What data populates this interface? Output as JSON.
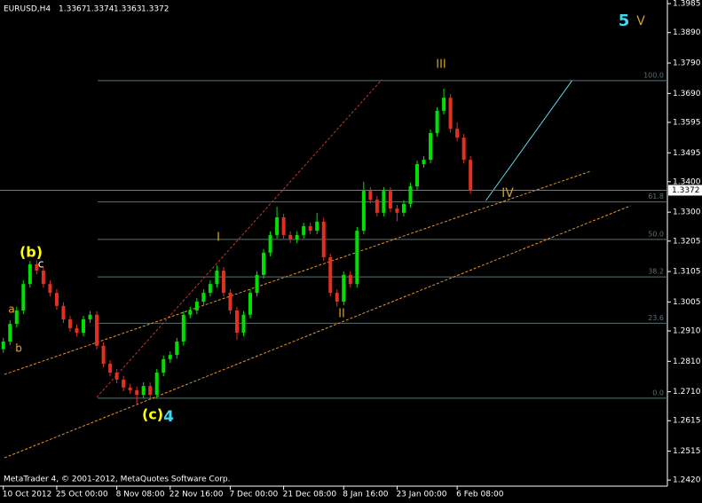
{
  "chart_data": {
    "type": "candlestick",
    "symbol": "EURUSD,H4",
    "quote": [
      1.3367,
      1.3374,
      1.3363,
      1.3372
    ],
    "footer": "MetaTrader 4, © 2001-2012, MetaQuotes Software Corp.",
    "bull_color": "#00e000",
    "bear_color": "#e03020",
    "open": [
      1.285,
      1.2875,
      1.2933,
      1.2977,
      1.3064,
      1.3129,
      1.3108,
      1.3064,
      1.3035,
      1.2992,
      1.2948,
      1.2919,
      1.2904,
      1.2948,
      1.2963,
      1.2861,
      1.2802,
      1.2773,
      1.275,
      1.2724,
      1.2715,
      1.27,
      1.2729,
      1.27,
      1.2773,
      1.2817,
      1.2831,
      1.2875,
      1.2963,
      1.2977,
      1.3006,
      1.3035,
      1.3064,
      1.3108,
      1.3035,
      1.2977,
      1.2904,
      1.2963,
      1.3035,
      1.3094,
      1.3167,
      1.3225,
      1.3283,
      1.3225,
      1.321,
      1.3225,
      1.3254,
      1.3239,
      1.3269,
      1.3152,
      1.3035,
      1.3006,
      1.3094,
      1.3064,
      1.3239,
      1.337,
      1.3341,
      1.3298,
      1.337,
      1.3312,
      1.3298,
      1.3327,
      1.3385,
      1.3458,
      1.3472,
      1.356,
      1.3633,
      1.3676,
      1.3574,
      1.3545,
      1.3472
    ],
    "high": [
      1.2887,
      1.2945,
      1.2989,
      1.3076,
      1.314,
      1.3141,
      1.312,
      1.3076,
      1.3047,
      1.3004,
      1.296,
      1.2931,
      1.296,
      1.2975,
      1.2975,
      1.2873,
      1.2814,
      1.2785,
      1.2762,
      1.2736,
      1.2727,
      1.2741,
      1.2741,
      1.2785,
      1.2829,
      1.2843,
      1.2887,
      1.2975,
      1.2989,
      1.3018,
      1.3047,
      1.3076,
      1.3125,
      1.312,
      1.3047,
      1.2989,
      1.2975,
      1.3047,
      1.3106,
      1.3179,
      1.3237,
      1.3318,
      1.3295,
      1.3237,
      1.3237,
      1.3266,
      1.3266,
      1.3298,
      1.3281,
      1.3164,
      1.3047,
      1.3106,
      1.3106,
      1.3251,
      1.34,
      1.3382,
      1.3353,
      1.3382,
      1.3382,
      1.3324,
      1.3339,
      1.3397,
      1.347,
      1.3484,
      1.3572,
      1.3645,
      1.3706,
      1.3688,
      1.3595,
      1.3557,
      1.3484
    ],
    "low": [
      1.2838,
      1.2863,
      1.2921,
      1.2965,
      1.3052,
      1.3096,
      1.3052,
      1.3023,
      1.298,
      1.2936,
      1.2907,
      1.2892,
      1.2892,
      1.2936,
      1.2849,
      1.279,
      1.2761,
      1.2738,
      1.2712,
      1.2703,
      1.267,
      1.2688,
      1.2688,
      1.2688,
      1.2761,
      1.2805,
      1.2819,
      1.2863,
      1.2951,
      1.2965,
      1.2994,
      1.3023,
      1.3052,
      1.3023,
      1.2965,
      1.288,
      1.2892,
      1.2951,
      1.3023,
      1.3082,
      1.3155,
      1.3213,
      1.3213,
      1.3198,
      1.3198,
      1.3213,
      1.3227,
      1.3227,
      1.314,
      1.3023,
      1.299,
      1.2994,
      1.3052,
      1.3052,
      1.3227,
      1.3329,
      1.3286,
      1.3286,
      1.33,
      1.327,
      1.3286,
      1.3315,
      1.3373,
      1.3446,
      1.346,
      1.3548,
      1.3621,
      1.3562,
      1.3533,
      1.346,
      1.336
    ],
    "close": [
      1.2875,
      1.2933,
      1.2977,
      1.3064,
      1.3129,
      1.3108,
      1.3064,
      1.3035,
      1.2992,
      1.2948,
      1.2919,
      1.2904,
      1.2948,
      1.2963,
      1.2861,
      1.2802,
      1.2773,
      1.275,
      1.2724,
      1.2715,
      1.27,
      1.2729,
      1.27,
      1.2773,
      1.2817,
      1.2831,
      1.2875,
      1.2963,
      1.2977,
      1.3006,
      1.3035,
      1.3064,
      1.3108,
      1.3035,
      1.2977,
      1.2904,
      1.2963,
      1.3035,
      1.3094,
      1.3167,
      1.3225,
      1.3283,
      1.3225,
      1.321,
      1.3225,
      1.3254,
      1.3239,
      1.3269,
      1.3152,
      1.3035,
      1.3006,
      1.3094,
      1.3064,
      1.3239,
      1.337,
      1.3341,
      1.3298,
      1.337,
      1.3312,
      1.3298,
      1.3327,
      1.3385,
      1.3458,
      1.3472,
      1.356,
      1.3633,
      1.3676,
      1.3574,
      1.3545,
      1.3472,
      1.3372
    ],
    "xlim": [
      -0.5,
      99.5
    ],
    "ylim": [
      1.24,
      1.3997
    ],
    "xticks": [
      {
        "value": 0,
        "label": "10 Oct 2012"
      },
      {
        "value": 8,
        "label": "25 Oct 00:00"
      },
      {
        "value": 17,
        "label": "8 Nov 08:00"
      },
      {
        "value": 25,
        "label": "22 Nov 16:00"
      },
      {
        "value": 34,
        "label": "7 Dec 00:00"
      },
      {
        "value": 42,
        "label": "21 Dec 08:00"
      },
      {
        "value": 51,
        "label": "8 Jan 16:00"
      },
      {
        "value": 59,
        "label": "23 Jan 00:00"
      },
      {
        "value": 68,
        "label": "6 Feb 08:00"
      }
    ],
    "yticks": [
      {
        "value": 1.242,
        "label": "1.2420"
      },
      1.2515,
      1.2615,
      {
        "value": 1.271,
        "label": "1.2710"
      },
      {
        "value": 1.281,
        "label": "1.2810"
      },
      {
        "value": 1.291,
        "label": "1.2910"
      },
      1.3005,
      1.3105,
      1.3205,
      {
        "value": 1.33,
        "label": "1.3300"
      },
      {
        "value": 1.34,
        "label": "1.3400"
      },
      1.3495,
      1.3595,
      {
        "value": 1.369,
        "label": "1.3690"
      },
      {
        "value": 1.379,
        "label": "1.3790"
      },
      {
        "value": 1.389,
        "label": "1.3890"
      },
      1.3985
    ],
    "fibo": {
      "low": 1.2689,
      "high": 1.3732,
      "color": "#5a7272",
      "levels": [
        {
          "value": 0,
          "label": "0.0"
        },
        23.6,
        38.2,
        {
          "value": 50,
          "label": "50.0"
        },
        61.8,
        {
          "value": 100,
          "label": "100.0"
        }
      ]
    },
    "trendlines": [
      {
        "color": "#c0392b",
        "dash": true,
        "points": [
          [
            14,
            1.2692
          ],
          [
            56.7,
            1.3735
          ]
        ]
      },
      {
        "color": "#e8952e",
        "dash": true,
        "points": [
          [
            0.16,
            1.2767
          ],
          [
            88.05,
            1.3435
          ]
        ]
      },
      {
        "color": "#e8952e",
        "dash": true,
        "points": [
          [
            0.16,
            1.2493
          ],
          [
            93.97,
            1.3321
          ]
        ]
      },
      {
        "color": "#5fd7e8",
        "dash": false,
        "points": [
          [
            72.3,
            1.3338
          ],
          [
            85.2,
            1.3732
          ]
        ]
      }
    ],
    "annotations": [
      {
        "text": "(b)",
        "color": "#ffff00"
      },
      {
        "text": "c",
        "color": "#ffffff"
      },
      {
        "text": "a",
        "color": "#e8a040"
      },
      {
        "text": "b",
        "color": "#e8a040"
      },
      {
        "text": "(c)",
        "color": "#ffff00"
      },
      {
        "text": "4",
        "color": "#40d8f0"
      },
      {
        "text": "I",
        "color": "#d4a020"
      },
      {
        "text": "II",
        "color": "#d4a020"
      },
      {
        "text": "III",
        "color": "#d4a020"
      },
      {
        "text": "IV",
        "color": "#d4a020"
      },
      {
        "text": "5",
        "color": "#40d8f0"
      },
      {
        "text": "V",
        "color": "#d4a020"
      }
    ]
  }
}
